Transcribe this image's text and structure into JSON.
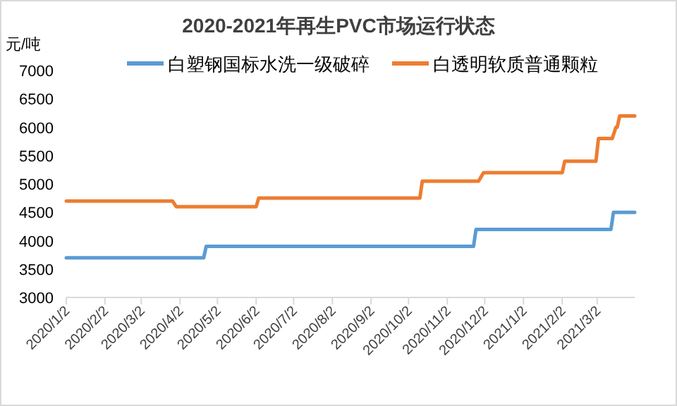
{
  "chart_data": {
    "type": "line",
    "title": "2020-2021年再生PVC市场运行状态",
    "ylabel": "元/吨",
    "legend": "top",
    "grid": false,
    "marker": "none",
    "line_style": "solid",
    "xlim": [
      "2020-01-02",
      "2021-04-01"
    ],
    "ylim": [
      3000,
      7000
    ],
    "yticks": [
      3000,
      3500,
      4000,
      4500,
      5000,
      5500,
      6000,
      6500,
      7000
    ],
    "xticks": [
      {
        "value": "2020-01-02",
        "label": "2020/1/2"
      },
      {
        "value": "2020-02-02",
        "label": "2020/2/2"
      },
      {
        "value": "2020-03-02",
        "label": "2020/3/2"
      },
      {
        "value": "2020-04-02",
        "label": "2020/4/2"
      },
      {
        "value": "2020-05-02",
        "label": "2020/5/2"
      },
      {
        "value": "2020-06-02",
        "label": "2020/6/2"
      },
      {
        "value": "2020-07-02",
        "label": "2020/7/2"
      },
      {
        "value": "2020-08-02",
        "label": "2020/8/2"
      },
      {
        "value": "2020-09-02",
        "label": "2020/9/2"
      },
      {
        "value": "2020-10-02",
        "label": "2020/10/2"
      },
      {
        "value": "2020-11-02",
        "label": "2020/11/2"
      },
      {
        "value": "2020-12-02",
        "label": "2020/12/2"
      },
      {
        "value": "2021-01-02",
        "label": "2021/1/2"
      },
      {
        "value": "2021-02-02",
        "label": "2021/2/2"
      },
      {
        "value": "2021-03-02",
        "label": "2021/3/2"
      }
    ],
    "series": [
      {
        "name": "白塑钢国标水洗一级破碎",
        "color": "#5b9bd5",
        "x": [
          "2020-01-02",
          "2020-04-21",
          "2020-04-23",
          "2020-11-23",
          "2020-11-25",
          "2021-03-13",
          "2021-03-15",
          "2021-04-01"
        ],
        "values": [
          3700,
          3700,
          3900,
          3900,
          4200,
          4200,
          4500,
          4500
        ]
      },
      {
        "name": "白透明软质普通颗粒",
        "color": "#ed7d31",
        "x": [
          "2020-01-02",
          "2020-03-27",
          "2020-03-30",
          "2020-06-02",
          "2020-06-04",
          "2020-10-11",
          "2020-10-13",
          "2020-11-27",
          "2020-12-01",
          "2021-02-02",
          "2021-02-04",
          "2021-03-01",
          "2021-03-03",
          "2021-03-14",
          "2021-03-17",
          "2021-03-18",
          "2021-03-20",
          "2021-04-01"
        ],
        "values": [
          4700,
          4700,
          4600,
          4600,
          4750,
          4750,
          5050,
          5050,
          5200,
          5200,
          5400,
          5400,
          5800,
          5800,
          6000,
          6000,
          6200,
          6200
        ]
      }
    ]
  }
}
